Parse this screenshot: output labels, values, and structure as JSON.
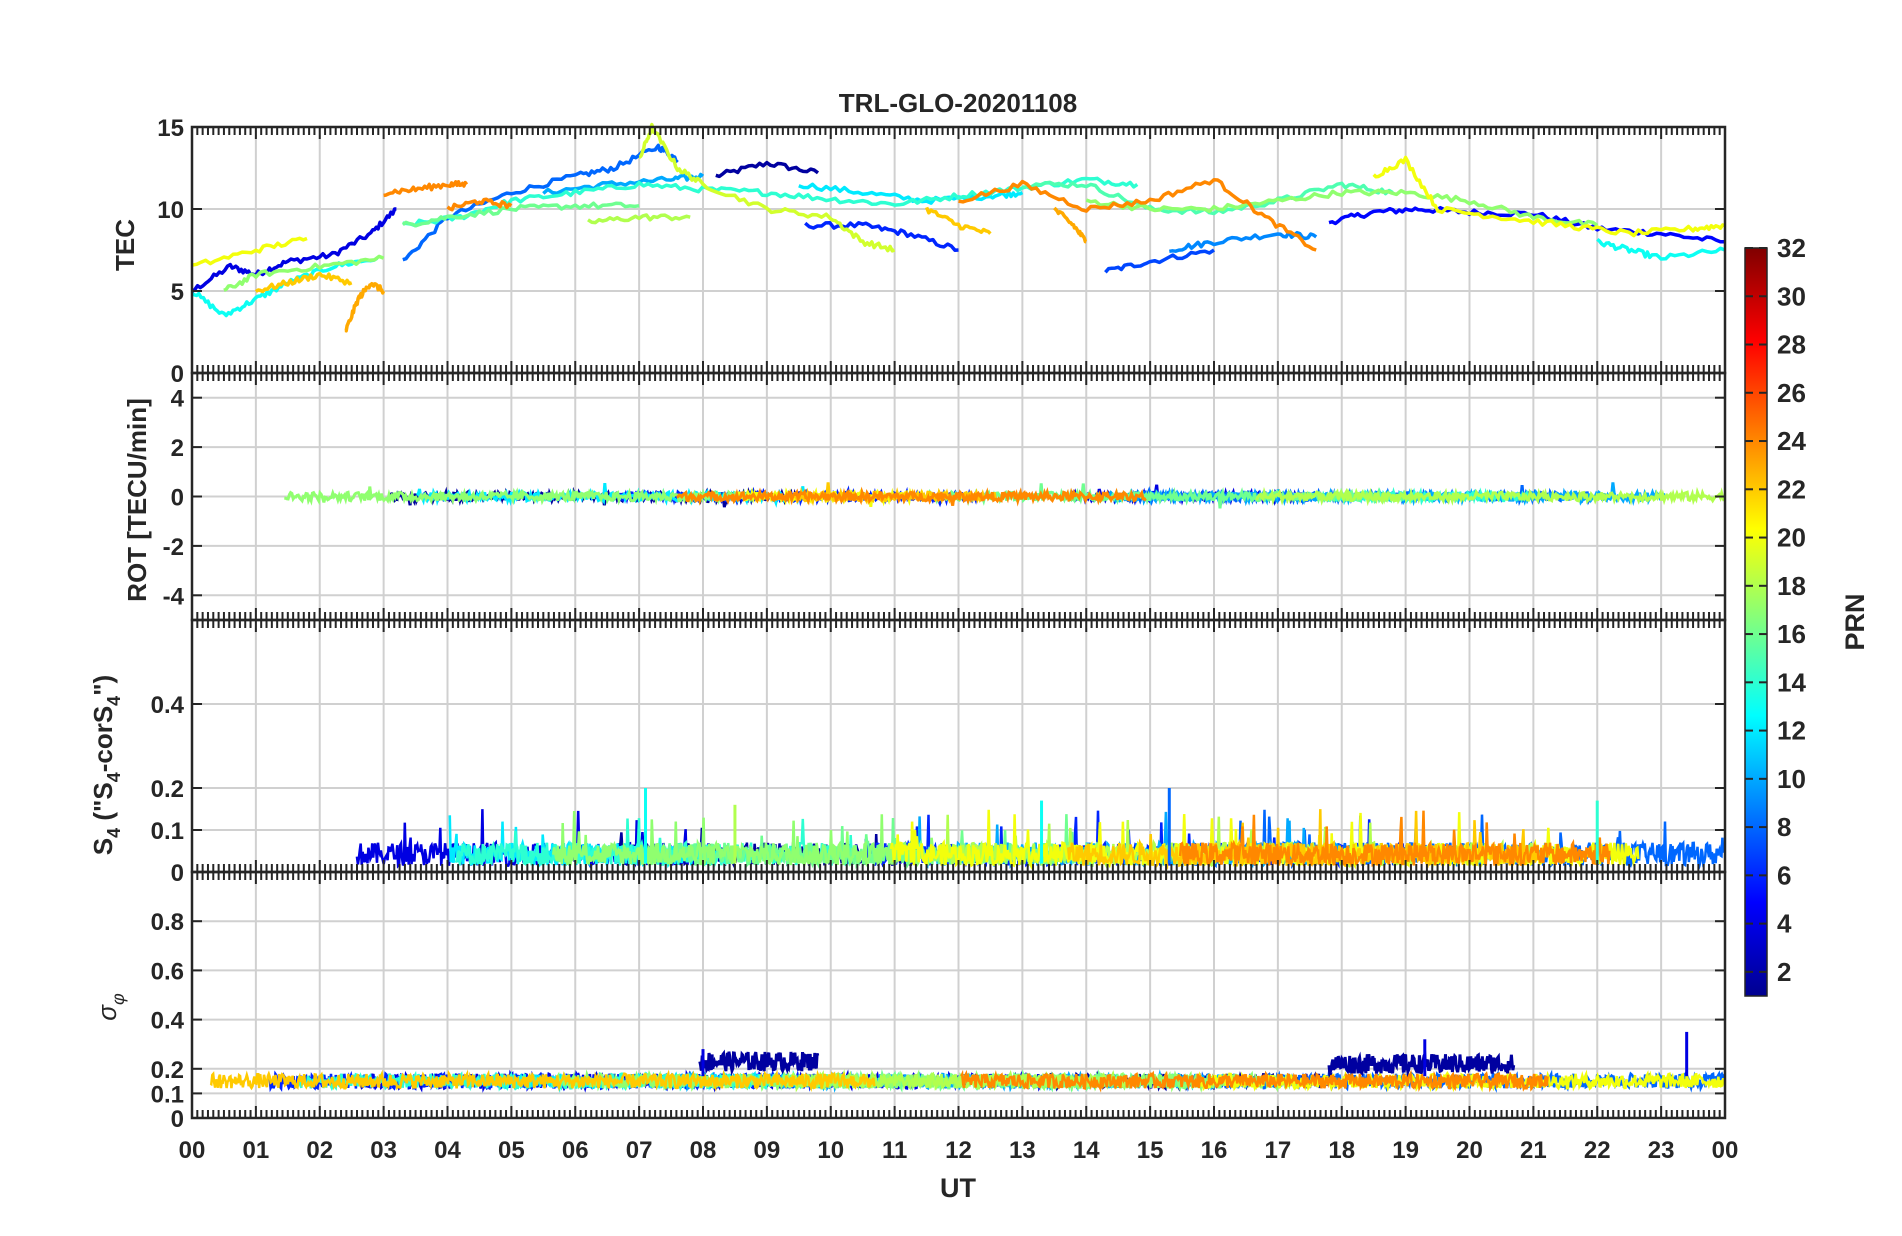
{
  "chart_data": [
    {
      "type": "line",
      "panel": "tec",
      "title": "TRL-GLO-20201108",
      "ylabel": "TEC",
      "xlabel": "",
      "ylim": [
        0,
        15
      ],
      "yticks": [
        0,
        5,
        10,
        15
      ],
      "xlim": [
        0,
        24
      ],
      "grid": true,
      "series": [
        {
          "name": "PRN 2",
          "prn": 2,
          "x": [
            8.2,
            9.0,
            9.8
          ],
          "y": [
            12.0,
            12.8,
            12.2
          ]
        },
        {
          "name": "PRN 4",
          "prn": 4,
          "x": [
            0.0,
            0.6,
            1.0,
            1.5,
            2.2,
            2.8,
            3.2
          ],
          "y": [
            5.0,
            6.5,
            6.0,
            6.8,
            7.2,
            8.5,
            10.0
          ]
        },
        {
          "name": "PRN 5",
          "prn": 5,
          "x": [
            17.8,
            18.5,
            19.2,
            20.0,
            21.0,
            22.0,
            23.0,
            24.0
          ],
          "y": [
            9.2,
            9.8,
            10.0,
            9.8,
            9.7,
            8.8,
            8.5,
            8.0
          ]
        },
        {
          "name": "PRN 6",
          "prn": 6,
          "x": [
            9.6,
            10.5,
            11.2,
            12.0
          ],
          "y": [
            9.0,
            9.0,
            8.5,
            7.5
          ]
        },
        {
          "name": "PRN 7",
          "prn": 7,
          "x": [
            14.3,
            15.0,
            16.0
          ],
          "y": [
            6.2,
            6.8,
            7.5
          ]
        },
        {
          "name": "PRN 8",
          "prn": 8,
          "x": [
            3.3,
            4.0,
            5.0,
            6.0,
            6.6,
            7.3,
            7.6
          ],
          "y": [
            6.8,
            9.5,
            11.0,
            12.0,
            12.5,
            13.8,
            13.0
          ]
        },
        {
          "name": "PRN 9",
          "prn": 9,
          "x": [
            15.3,
            16.0,
            17.0,
            17.6
          ],
          "y": [
            7.5,
            8.0,
            8.5,
            8.3
          ]
        },
        {
          "name": "PRN 10",
          "prn": 10,
          "x": [
            5.5,
            6.5,
            7.5,
            8.0
          ],
          "y": [
            11.0,
            11.5,
            11.8,
            12.0
          ]
        },
        {
          "name": "PRN 12",
          "prn": 12,
          "x": [
            9.5,
            10.5,
            11.5,
            12.5,
            13.0
          ],
          "y": [
            11.5,
            11.0,
            10.5,
            10.8,
            11.0
          ]
        },
        {
          "name": "PRN 13",
          "prn": 13,
          "x": [
            0.0,
            0.5,
            1.0,
            1.5,
            2.2,
            2.9
          ],
          "y": [
            5.0,
            3.5,
            4.5,
            5.5,
            6.5,
            7.0
          ]
        },
        {
          "name": "PRN 13",
          "prn": 13,
          "x": [
            22.0,
            22.5,
            23.0,
            24.0
          ],
          "y": [
            8.0,
            7.5,
            7.0,
            7.5
          ]
        },
        {
          "name": "PRN 14",
          "prn": 14,
          "x": [
            3.3,
            4.2,
            5.0,
            6.0,
            7.0,
            8.0,
            9.0,
            10.0,
            11.0,
            12.0,
            13.0,
            14.0,
            14.8
          ],
          "y": [
            9.0,
            9.5,
            10.5,
            11.0,
            11.5,
            11.2,
            11.0,
            10.6,
            10.3,
            10.8,
            11.3,
            11.8,
            11.5
          ]
        },
        {
          "name": "PRN 15",
          "prn": 15,
          "x": [
            13.0,
            14.0,
            15.0,
            16.0,
            17.0,
            18.0,
            18.8
          ],
          "y": [
            11.5,
            11.5,
            10.0,
            9.8,
            10.5,
            11.5,
            11.0
          ]
        },
        {
          "name": "PRN 16",
          "prn": 16,
          "x": [
            3.3,
            4.0,
            5.0,
            6.0,
            7.0
          ],
          "y": [
            9.0,
            9.5,
            10.0,
            10.2,
            10.2
          ]
        },
        {
          "name": "PRN 17",
          "prn": 17,
          "x": [
            0.5,
            1.0,
            2.0,
            3.0
          ],
          "y": [
            5.0,
            6.0,
            6.5,
            7.0
          ]
        },
        {
          "name": "PRN 17",
          "prn": 17,
          "x": [
            14.0,
            15.0,
            16.0,
            17.0,
            18.0,
            19.0,
            20.0,
            21.0,
            22.0
          ],
          "y": [
            10.5,
            10.0,
            10.0,
            10.5,
            11.0,
            11.0,
            10.5,
            9.5,
            9.0
          ]
        },
        {
          "name": "PRN 18",
          "prn": 18,
          "x": [
            6.2,
            7.0,
            7.8
          ],
          "y": [
            9.2,
            9.5,
            9.5
          ]
        },
        {
          "name": "PRN 19",
          "prn": 19,
          "x": [
            7.0,
            7.2,
            7.6,
            8.0,
            9.0,
            10.0,
            10.5,
            11.0
          ],
          "y": [
            13.0,
            15.0,
            12.5,
            11.5,
            10.0,
            9.5,
            8.0,
            7.5
          ]
        },
        {
          "name": "PRN 20",
          "prn": 20,
          "x": [
            0.0,
            1.0,
            1.8
          ],
          "y": [
            6.5,
            7.5,
            8.2
          ]
        },
        {
          "name": "PRN 20",
          "prn": 20,
          "x": [
            18.5,
            19.0,
            19.5,
            20.5,
            21.5,
            22.5,
            23.5,
            24.0
          ],
          "y": [
            12.0,
            13.0,
            10.0,
            9.5,
            9.0,
            8.5,
            8.8,
            9.0
          ]
        },
        {
          "name": "PRN 22",
          "prn": 22,
          "x": [
            1.0,
            1.5,
            2.0,
            2.5
          ],
          "y": [
            5.0,
            5.5,
            6.0,
            5.5
          ]
        },
        {
          "name": "PRN 22",
          "prn": 22,
          "x": [
            11.5,
            12.0,
            12.5
          ],
          "y": [
            10.0,
            9.0,
            8.5
          ]
        },
        {
          "name": "PRN 23",
          "prn": 23,
          "x": [
            2.4,
            2.6,
            2.8,
            3.0
          ],
          "y": [
            2.5,
            4.5,
            5.5,
            5.0
          ]
        },
        {
          "name": "PRN 23",
          "prn": 23,
          "x": [
            13.5,
            13.8,
            14.0
          ],
          "y": [
            10.0,
            9.0,
            8.0
          ]
        },
        {
          "name": "PRN 24",
          "prn": 24,
          "x": [
            3.0,
            3.5,
            4.0,
            4.3
          ],
          "y": [
            11.0,
            11.2,
            11.5,
            11.5
          ]
        },
        {
          "name": "PRN 24",
          "prn": 24,
          "x": [
            12.0,
            13.0,
            14.0,
            15.0,
            16.0,
            16.8,
            17.6
          ],
          "y": [
            10.5,
            11.5,
            10.0,
            10.5,
            11.8,
            9.5,
            7.5
          ]
        },
        {
          "name": "PRN 24",
          "prn": 24,
          "x": [
            4.0,
            4.5,
            5.0
          ],
          "y": [
            10.0,
            10.5,
            10.2
          ]
        }
      ]
    },
    {
      "type": "line",
      "panel": "rot",
      "ylabel": "ROT [TECU/min]",
      "ylim": [
        -5,
        5
      ],
      "yticks": [
        -4,
        -2,
        0,
        2,
        4
      ],
      "xlim": [
        0,
        24
      ],
      "grid": true,
      "note": "noisy traces near 0 for all PRNs",
      "amplitude_range": [
        -0.5,
        0.6
      ]
    },
    {
      "type": "line",
      "panel": "s4",
      "ylabel": "S4 (\"S4-corS4\")",
      "ylim": [
        0,
        0.6
      ],
      "yticks": [
        0,
        0.1,
        0.2,
        0.4
      ],
      "xlim": [
        0,
        24
      ],
      "grid": true,
      "typical_level": 0.05,
      "peaks": [
        {
          "x": 7.1,
          "y": 0.2
        },
        {
          "x": 8.5,
          "y": 0.16
        },
        {
          "x": 15.3,
          "y": 0.2
        },
        {
          "x": 22.0,
          "y": 0.17
        },
        {
          "x": 13.3,
          "y": 0.17
        }
      ]
    },
    {
      "type": "line",
      "panel": "sigma_phi",
      "ylabel": "σφ",
      "ylim": [
        0,
        1.0
      ],
      "yticks": [
        0,
        0.1,
        0.2,
        0.4,
        0.6,
        0.8
      ],
      "xlim": [
        0,
        24
      ],
      "grid": true,
      "typical_level": 0.15,
      "elevated_intervals": [
        {
          "x_start": 7.95,
          "x_end": 9.8,
          "level": 0.23
        },
        {
          "x_start": 17.8,
          "x_end": 20.7,
          "level": 0.22
        }
      ],
      "peaks": [
        {
          "x": 23.4,
          "y": 0.35
        },
        {
          "x": 19.3,
          "y": 0.32
        },
        {
          "x": 8.0,
          "y": 0.28
        }
      ]
    }
  ],
  "xaxis": {
    "label": "UT",
    "ticks": [
      "00",
      "01",
      "02",
      "03",
      "04",
      "05",
      "06",
      "07",
      "08",
      "09",
      "10",
      "11",
      "12",
      "13",
      "14",
      "15",
      "16",
      "17",
      "18",
      "19",
      "20",
      "21",
      "22",
      "23",
      "00"
    ]
  },
  "colorbar": {
    "label": "PRN",
    "range": [
      1,
      32
    ],
    "ticks": [
      2,
      4,
      6,
      8,
      10,
      12,
      14,
      16,
      18,
      20,
      22,
      24,
      26,
      28,
      30,
      32
    ],
    "colormap": "jet"
  },
  "labels": {
    "title": "TRL-GLO-20201108",
    "tec_ylabel": "TEC",
    "rot_ylabel": "ROT [TECU/min]",
    "s4_ylabel_main": "S",
    "s4_ylabel_sub": "4",
    "s4_ylabel_rest1": " (\"S",
    "s4_ylabel_sub2": "4",
    "s4_ylabel_rest2": "-corS",
    "s4_ylabel_sub3": "4",
    "s4_ylabel_rest3": "\")",
    "sigma_ylabel": "σ",
    "sigma_sub": "φ",
    "xlabel": "UT",
    "colorbar_label": "PRN"
  }
}
